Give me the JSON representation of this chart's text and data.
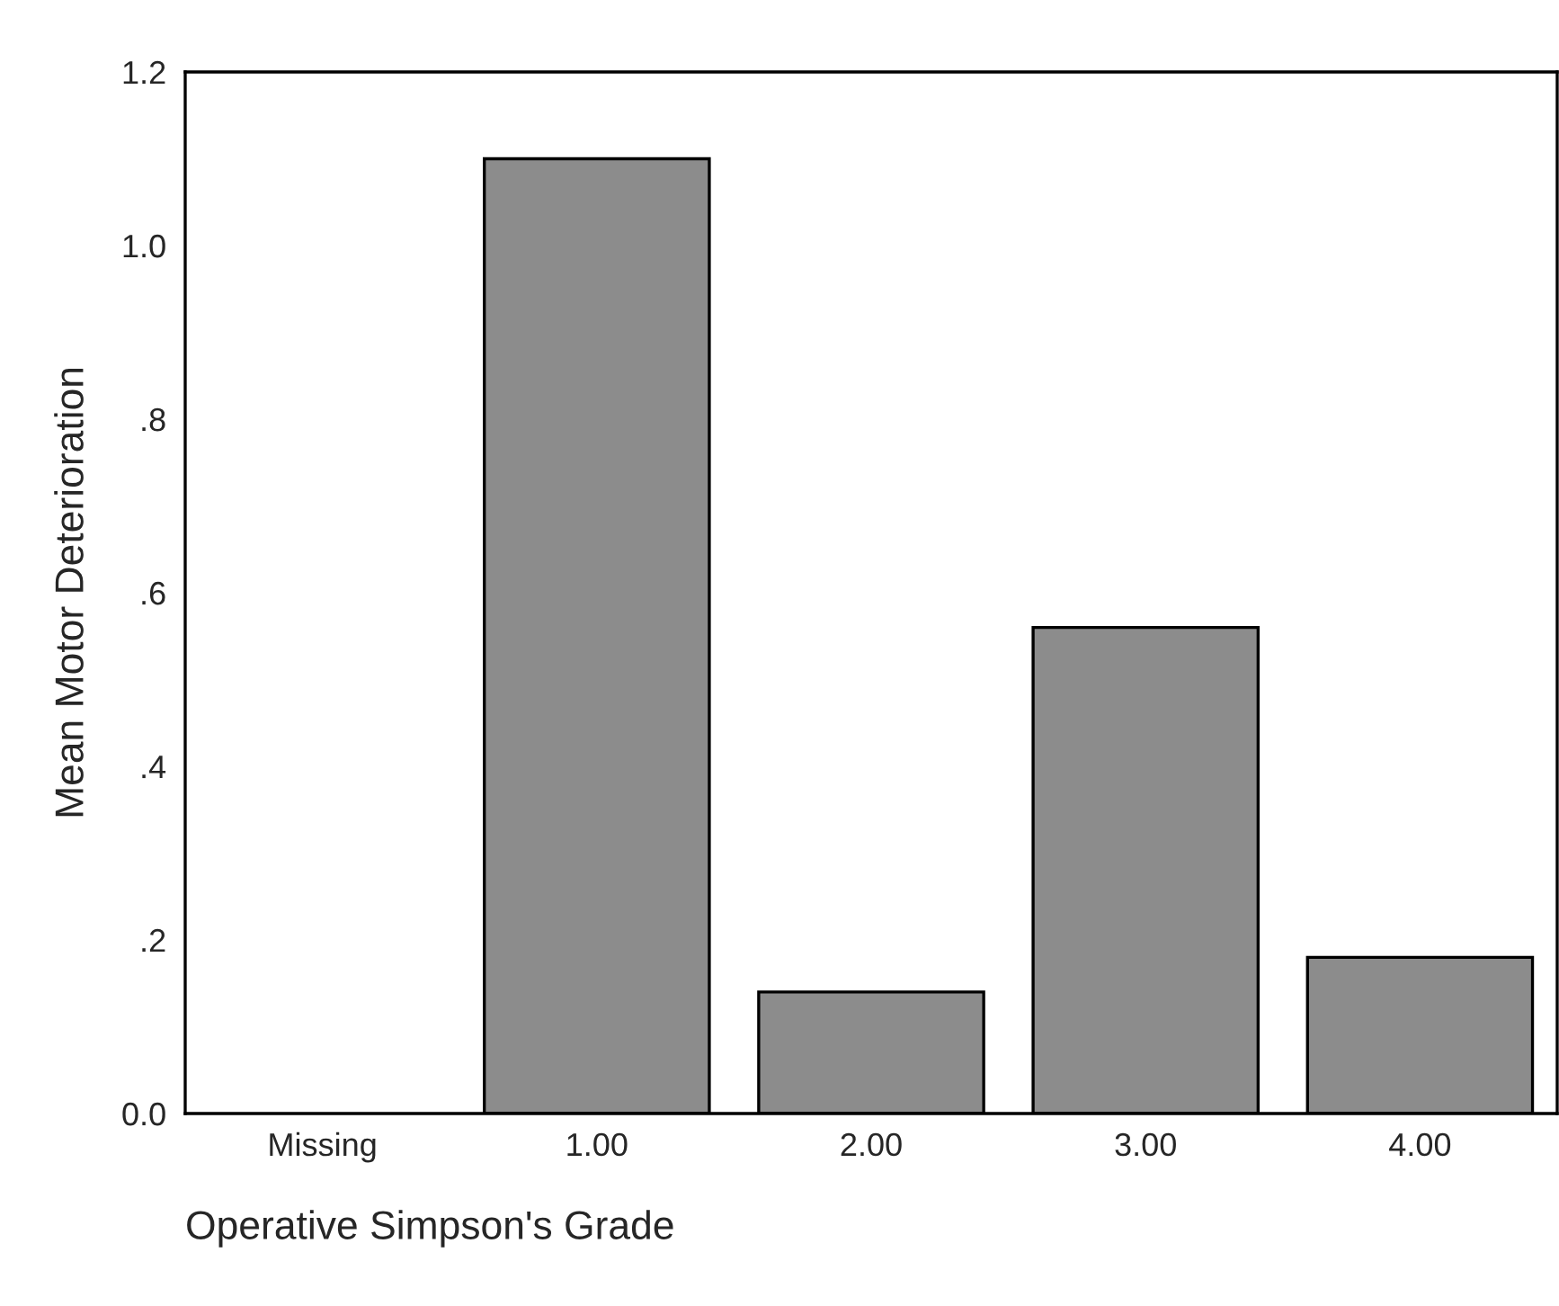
{
  "chart_data": {
    "type": "bar",
    "xlabel": "Operative Simpson's Grade",
    "ylabel": "Mean Motor Deterioration",
    "categories": [
      "Missing",
      "1.00",
      "2.00",
      "3.00",
      "4.00"
    ],
    "values": [
      null,
      1.1,
      0.14,
      0.56,
      0.18
    ],
    "color": "#8c8c8c",
    "ylim": [
      0,
      1.2
    ],
    "yticks": [
      {
        "value": 0,
        "label": "0.0"
      },
      {
        "value": 0.2,
        "label": ".2"
      },
      {
        "value": 0.4,
        "label": ".4"
      },
      {
        "value": 0.6,
        "label": ".6"
      },
      {
        "value": 0.8,
        "label": ".8"
      },
      {
        "value": 1.0,
        "label": "1.0"
      },
      {
        "value": 1.2,
        "label": "1.2"
      }
    ],
    "grid": false,
    "legend": false
  }
}
